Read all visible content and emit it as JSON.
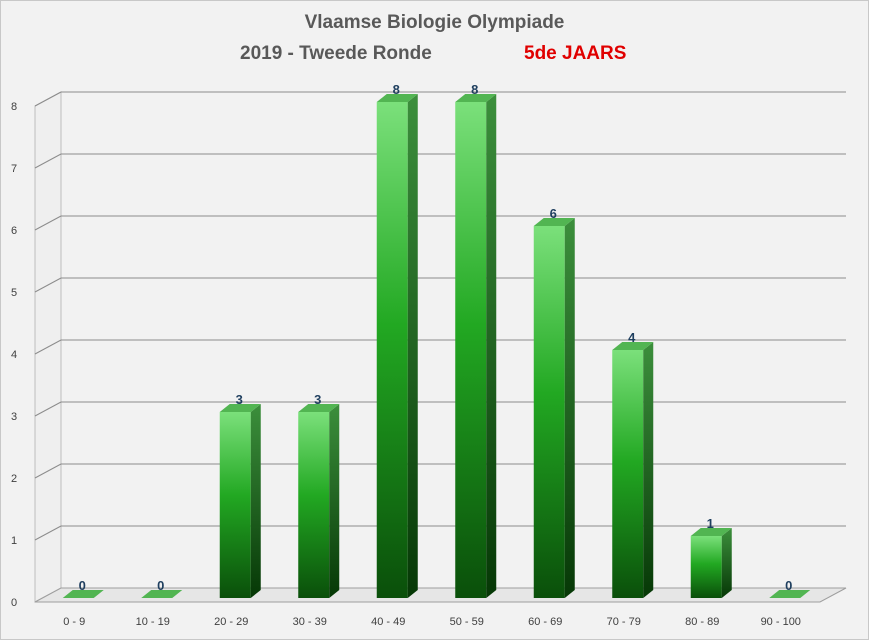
{
  "chart_data": {
    "type": "bar",
    "title": "Vlaamse Biologie Olympiade",
    "subtitle": "2019 - Tweede Ronde",
    "subtitle_highlight": "5de JAARS",
    "subtitle_highlight_color": "#e00000",
    "categories": [
      "0 - 9",
      "10 - 19",
      "20 - 29",
      "30 - 39",
      "40 - 49",
      "50 - 59",
      "60 - 69",
      "70 - 79",
      "80 - 89",
      "90 - 100"
    ],
    "values": [
      0,
      0,
      3,
      3,
      8,
      8,
      6,
      4,
      1,
      0
    ],
    "ylim": [
      0,
      8
    ],
    "yticks": [
      "0",
      "1",
      "2",
      "3",
      "4",
      "5",
      "6",
      "7",
      "8"
    ],
    "xlabel": "",
    "ylabel": "",
    "grid": true,
    "legend": "none",
    "bar_color": "#1aa01a",
    "data_labels": true
  }
}
